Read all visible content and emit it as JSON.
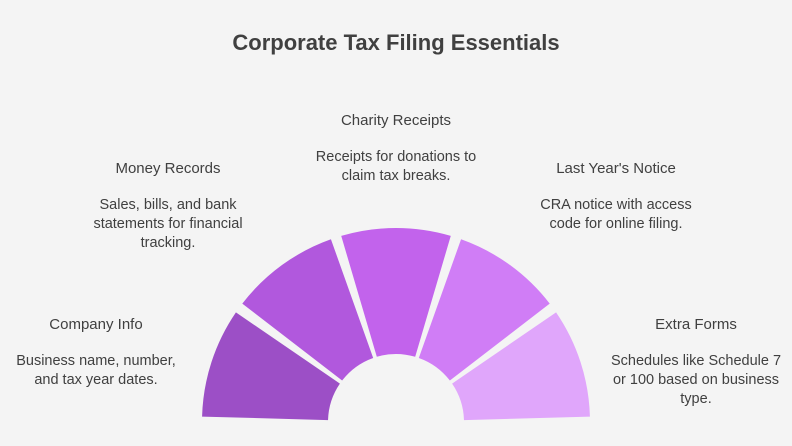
{
  "title": "Corporate Tax Filing Essentials",
  "segments": [
    {
      "heading": "Company Info",
      "description": "Business name, number, and tax year dates.",
      "color": "#9c4fc6"
    },
    {
      "heading": "Money Records",
      "description": "Sales, bills, and bank statements for financial tracking.",
      "color": "#b158dd"
    },
    {
      "heading": "Charity Receipts",
      "description": "Receipts for donations to claim tax breaks.",
      "color": "#c263ec"
    },
    {
      "heading": "Last Year's Notice",
      "description": "CRA notice with access code for online filing.",
      "color": "#d07df6"
    },
    {
      "heading": "Extra Forms",
      "description": "Schedules like Schedule 7 or 100 based on business type.",
      "color": "#e0a6fb"
    }
  ]
}
